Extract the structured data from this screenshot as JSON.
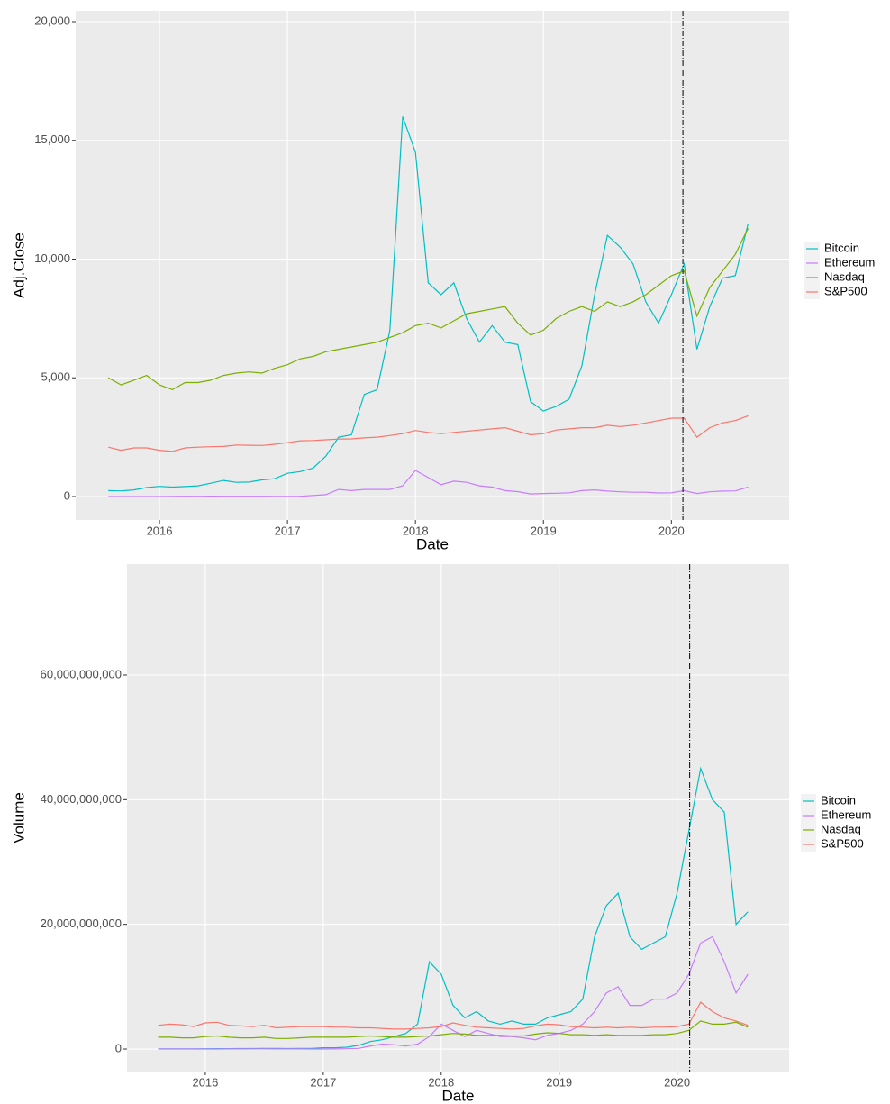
{
  "chart_data": [
    {
      "type": "line",
      "xlabel": "Date",
      "ylabel": "Adj.Close",
      "grid": true,
      "vline": 2020.09,
      "xlim": [
        2015.345,
        2020.92
      ],
      "ylim": [
        -987,
        20455
      ],
      "xticks": [
        2016,
        2017,
        2018,
        2019,
        2020
      ],
      "yticks": [
        0,
        {
          "value": 5000,
          "label": "5,000"
        },
        {
          "value": 10000,
          "label": "10,000"
        },
        {
          "value": 15000,
          "label": "15,000"
        },
        {
          "value": 20000,
          "label": "20,000"
        }
      ],
      "x": [
        2015.6,
        2015.7,
        2015.8,
        2015.9,
        2016.0,
        2016.1,
        2016.2,
        2016.3,
        2016.4,
        2016.5,
        2016.6,
        2016.7,
        2016.8,
        2016.9,
        2017.0,
        2017.1,
        2017.2,
        2017.3,
        2017.4,
        2017.5,
        2017.6,
        2017.7,
        2017.8,
        2017.9,
        2018.0,
        2018.1,
        2018.2,
        2018.3,
        2018.4,
        2018.5,
        2018.6,
        2018.7,
        2018.8,
        2018.9,
        2019.0,
        2019.1,
        2019.2,
        2019.3,
        2019.4,
        2019.5,
        2019.6,
        2019.7,
        2019.8,
        2019.9,
        2020.0,
        2020.1,
        2020.2,
        2020.3,
        2020.4,
        2020.5,
        2020.6
      ],
      "series": [
        {
          "name": "Bitcoin",
          "color": "#00BFC4",
          "values": [
            250,
            240,
            280,
            380,
            430,
            400,
            420,
            450,
            560,
            680,
            600,
            610,
            700,
            750,
            980,
            1050,
            1200,
            1700,
            2500,
            2600,
            4300,
            4500,
            7000,
            16000,
            14500,
            9000,
            8500,
            9000,
            7500,
            6500,
            7200,
            6500,
            6400,
            4000,
            3600,
            3800,
            4100,
            5500,
            8500,
            11000,
            10500,
            9800,
            8200,
            7300,
            8500,
            9800,
            6200,
            8000,
            9200,
            9300,
            11500
          ]
        },
        {
          "name": "Ethereum",
          "color": "#C77CFF",
          "values": [
            1,
            1,
            1,
            1,
            1,
            6,
            11,
            9,
            14,
            12,
            11,
            12,
            11,
            8,
            8,
            11,
            40,
            80,
            300,
            250,
            300,
            300,
            300,
            450,
            1100,
            800,
            500,
            650,
            600,
            450,
            400,
            250,
            210,
            110,
            130,
            140,
            160,
            250,
            280,
            230,
            200,
            180,
            180,
            150,
            160,
            250,
            130,
            200,
            230,
            240,
            400
          ]
        },
        {
          "name": "Nasdaq",
          "color": "#7CAE00",
          "values": [
            5000,
            4700,
            4900,
            5100,
            4700,
            4500,
            4800,
            4800,
            4900,
            5100,
            5200,
            5250,
            5200,
            5400,
            5550,
            5800,
            5900,
            6100,
            6200,
            6300,
            6400,
            6500,
            6700,
            6900,
            7200,
            7300,
            7100,
            7400,
            7700,
            7800,
            7900,
            8000,
            7300,
            6800,
            7000,
            7500,
            7800,
            8000,
            7800,
            8200,
            8000,
            8200,
            8500,
            8900,
            9300,
            9500,
            7600,
            8800,
            9500,
            10200,
            11300
          ]
        },
        {
          "name": "S&P500",
          "color": "#F8766D",
          "values": [
            2080,
            1950,
            2050,
            2050,
            1950,
            1900,
            2050,
            2080,
            2100,
            2110,
            2170,
            2160,
            2150,
            2200,
            2270,
            2350,
            2360,
            2390,
            2420,
            2430,
            2470,
            2500,
            2570,
            2650,
            2780,
            2700,
            2650,
            2700,
            2750,
            2800,
            2850,
            2900,
            2750,
            2600,
            2650,
            2800,
            2850,
            2900,
            2900,
            3000,
            2950,
            3000,
            3100,
            3200,
            3300,
            3300,
            2500,
            2900,
            3100,
            3200,
            3400
          ]
        }
      ]
    },
    {
      "type": "line",
      "xlabel": "Date",
      "ylabel": "Volume",
      "grid": true,
      "vline": 2020.107,
      "xlim": [
        2015.336,
        2020.95
      ],
      "ylim": [
        -3610000000.0,
        77780000000.0
      ],
      "xticks": [
        2016,
        2017,
        2018,
        2019,
        2020
      ],
      "yticks": [
        0,
        {
          "value": 20000000000.0,
          "label": "20,000,000,000"
        },
        {
          "value": 40000000000.0,
          "label": "40,000,000,000"
        },
        {
          "value": 60000000000.0,
          "label": "60,000,000,000"
        }
      ],
      "x": [
        2015.6,
        2015.7,
        2015.8,
        2015.9,
        2016.0,
        2016.1,
        2016.2,
        2016.3,
        2016.4,
        2016.5,
        2016.6,
        2016.7,
        2016.8,
        2016.9,
        2017.0,
        2017.1,
        2017.2,
        2017.3,
        2017.4,
        2017.5,
        2017.6,
        2017.7,
        2017.8,
        2017.9,
        2018.0,
        2018.1,
        2018.2,
        2018.3,
        2018.4,
        2018.5,
        2018.6,
        2018.7,
        2018.8,
        2018.9,
        2019.0,
        2019.1,
        2019.2,
        2019.3,
        2019.4,
        2019.5,
        2019.6,
        2019.7,
        2019.8,
        2019.9,
        2020.0,
        2020.1,
        2020.2,
        2020.3,
        2020.4,
        2020.5,
        2020.6
      ],
      "series": [
        {
          "name": "Bitcoin",
          "color": "#00BFC4",
          "values": [
            20000000.0,
            20000000.0,
            30000000.0,
            40000000.0,
            50000000.0,
            60000000.0,
            60000000.0,
            70000000.0,
            80000000.0,
            100000000.0,
            90000000.0,
            80000000.0,
            90000000.0,
            100000000.0,
            200000000.0,
            200000000.0,
            300000000.0,
            600000000.0,
            1200000000.0,
            1500000000.0,
            2000000000.0,
            2500000000.0,
            4000000000.0,
            14000000000.0,
            12000000000.0,
            7000000000.0,
            5000000000.0,
            6000000000.0,
            4500000000.0,
            4000000000.0,
            4500000000.0,
            4000000000.0,
            4000000000.0,
            5000000000.0,
            5500000000.0,
            6000000000.0,
            8000000000.0,
            18000000000.0,
            23000000000.0,
            25000000000.0,
            18000000000.0,
            16000000000.0,
            17000000000.0,
            18000000000.0,
            25000000000.0,
            35000000000.0,
            45000000000.0,
            40000000000.0,
            38000000000.0,
            20000000000.0,
            22000000000.0
          ]
        },
        {
          "name": "Ethereum",
          "color": "#C77CFF",
          "values": [
            1000000.0,
            1000000.0,
            1000000.0,
            1000000.0,
            2000000.0,
            10000000.0,
            20000000.0,
            20000000.0,
            30000000.0,
            30000000.0,
            20000000.0,
            20000000.0,
            20000000.0,
            10000000.0,
            10000000.0,
            20000000.0,
            50000000.0,
            100000000.0,
            500000000.0,
            800000000.0,
            700000000.0,
            500000000.0,
            800000000.0,
            2000000000.0,
            4000000000.0,
            3000000000.0,
            2000000000.0,
            3000000000.0,
            2500000000.0,
            2000000000.0,
            2000000000.0,
            1800000000.0,
            1500000000.0,
            2200000000.0,
            2500000000.0,
            3000000000.0,
            4000000000.0,
            6000000000.0,
            9000000000.0,
            10000000000.0,
            7000000000.0,
            7000000000.0,
            8000000000.0,
            8000000000.0,
            9000000000.0,
            12000000000.0,
            17000000000.0,
            18000000000.0,
            14000000000.0,
            9000000000.0,
            12000000000.0
          ]
        },
        {
          "name": "Nasdaq",
          "color": "#7CAE00",
          "values": [
            1900000000.0,
            1900000000.0,
            1800000000.0,
            1800000000.0,
            2000000000.0,
            2100000000.0,
            1900000000.0,
            1800000000.0,
            1800000000.0,
            1900000000.0,
            1700000000.0,
            1700000000.0,
            1800000000.0,
            1900000000.0,
            1900000000.0,
            1900000000.0,
            1900000000.0,
            2000000000.0,
            2100000000.0,
            2000000000.0,
            1900000000.0,
            1900000000.0,
            2000000000.0,
            2100000000.0,
            2300000000.0,
            2500000000.0,
            2400000000.0,
            2200000000.0,
            2200000000.0,
            2200000000.0,
            2100000000.0,
            2100000000.0,
            2400000000.0,
            2600000000.0,
            2500000000.0,
            2300000000.0,
            2300000000.0,
            2200000000.0,
            2300000000.0,
            2200000000.0,
            2200000000.0,
            2200000000.0,
            2300000000.0,
            2300000000.0,
            2500000000.0,
            3000000000.0,
            4500000000.0,
            4000000000.0,
            4000000000.0,
            4300000000.0,
            3500000000.0
          ]
        },
        {
          "name": "S&P500",
          "color": "#F8766D",
          "values": [
            3800000000.0,
            4000000000.0,
            3900000000.0,
            3600000000.0,
            4200000000.0,
            4300000000.0,
            3800000000.0,
            3700000000.0,
            3600000000.0,
            3800000000.0,
            3400000000.0,
            3500000000.0,
            3600000000.0,
            3600000000.0,
            3600000000.0,
            3500000000.0,
            3500000000.0,
            3400000000.0,
            3400000000.0,
            3300000000.0,
            3200000000.0,
            3200000000.0,
            3300000000.0,
            3400000000.0,
            3600000000.0,
            4200000000.0,
            3800000000.0,
            3500000000.0,
            3400000000.0,
            3300000000.0,
            3200000000.0,
            3300000000.0,
            3700000000.0,
            4000000000.0,
            3900000000.0,
            3600000000.0,
            3500000000.0,
            3400000000.0,
            3500000000.0,
            3400000000.0,
            3500000000.0,
            3400000000.0,
            3500000000.0,
            3500000000.0,
            3600000000.0,
            4000000000.0,
            7500000000.0,
            6000000000.0,
            5000000000.0,
            4500000000.0,
            3800000000.0
          ]
        }
      ]
    }
  ]
}
